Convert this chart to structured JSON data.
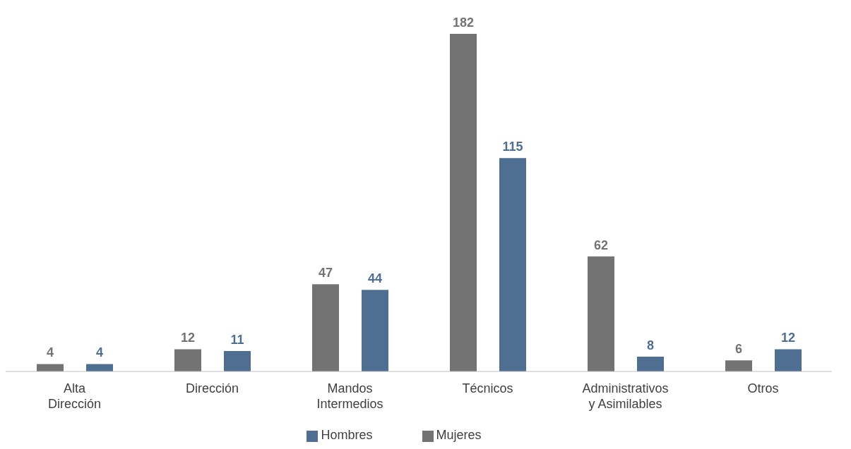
{
  "chart_data": {
    "type": "bar",
    "categories": [
      "Alta Dirección",
      "Dirección",
      "Mandos Intermedios",
      "Técnicos",
      "Administrativos y Asimilables",
      "Otros"
    ],
    "series": [
      {
        "name": "Mujeres",
        "color": "#737373",
        "values": [
          4,
          12,
          47,
          182,
          62,
          6
        ]
      },
      {
        "name": "Hombres",
        "color": "#4f6f92",
        "values": [
          4,
          11,
          44,
          115,
          8,
          12
        ]
      }
    ],
    "data_labels": true,
    "legend": "bottom",
    "grid": false
  }
}
